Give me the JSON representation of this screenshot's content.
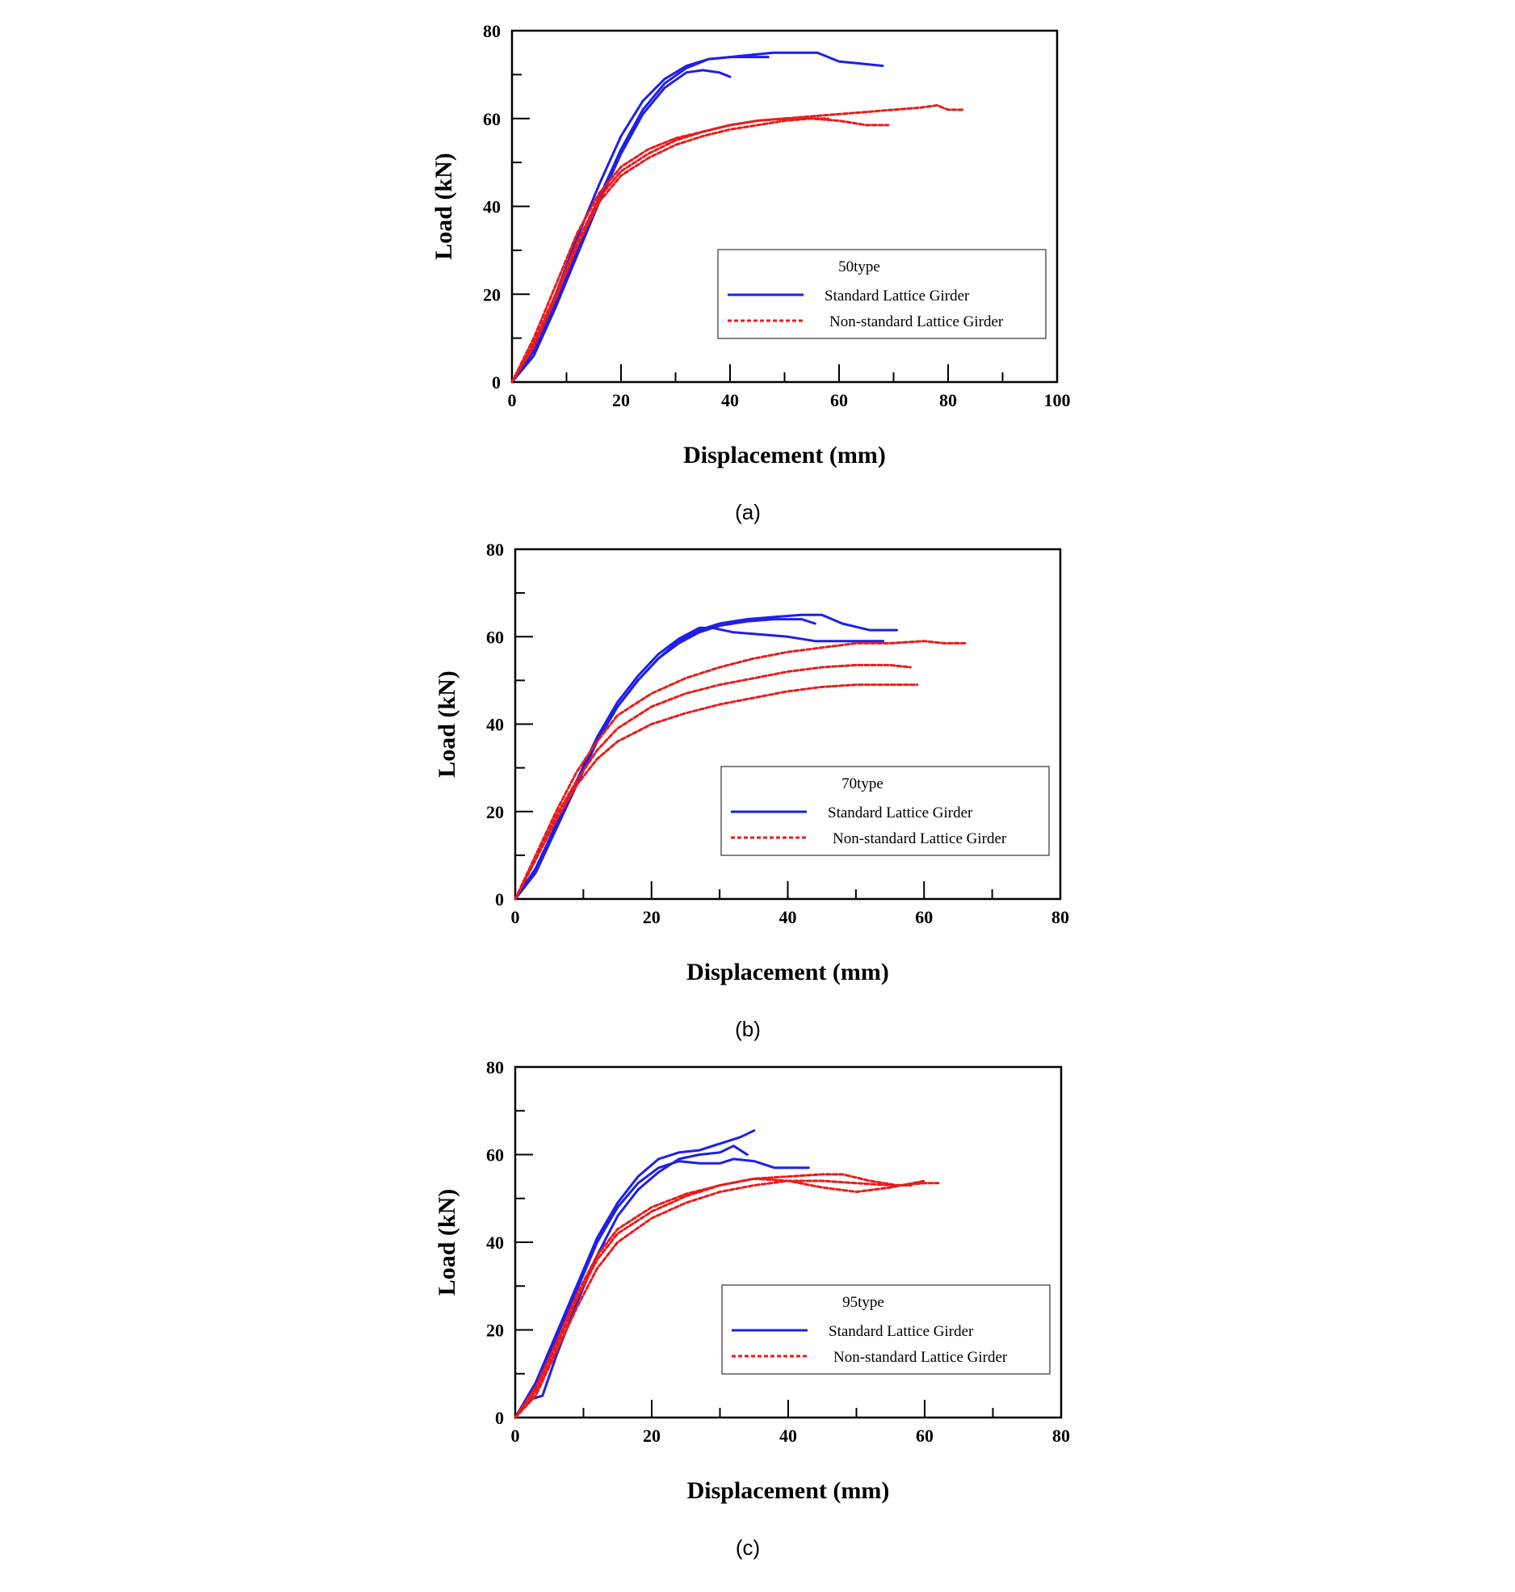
{
  "chart_data": [
    {
      "type": "line",
      "caption": "(a)",
      "xlabel": "Displacement (mm)",
      "ylabel": "Load (kN)",
      "xlim": [
        0,
        100
      ],
      "ylim": [
        0,
        80
      ],
      "xticks": [
        0,
        20,
        40,
        60,
        80,
        100
      ],
      "yticks": [
        0,
        20,
        40,
        60,
        80
      ],
      "grid": false,
      "legend_position": "lower-right",
      "legend_title": "50type",
      "legend_entries": [
        {
          "label": "Standard Lattice Girder",
          "color": "#1f1fe6",
          "dash": "solid"
        },
        {
          "label": "Non-standard Lattice Girder",
          "color": "#e81c1c",
          "dash": "dashed"
        }
      ],
      "series": [
        {
          "group": 0,
          "x": [
            0,
            4,
            8,
            12,
            16,
            20,
            24,
            28,
            32,
            36,
            40,
            44,
            48,
            52,
            56,
            60,
            64,
            68
          ],
          "y": [
            0,
            7,
            18,
            30,
            42,
            53,
            62,
            68,
            71.5,
            73.5,
            74,
            74.5,
            75,
            75,
            75,
            73,
            72.5,
            72
          ]
        },
        {
          "group": 0,
          "x": [
            0,
            4,
            8,
            12,
            16,
            20,
            24,
            28,
            32,
            36,
            40,
            44,
            47
          ],
          "y": [
            0,
            8,
            20,
            33,
            45,
            56,
            64,
            69,
            72,
            73.5,
            74,
            74,
            74
          ]
        },
        {
          "group": 0,
          "x": [
            0,
            4,
            8,
            12,
            16,
            20,
            24,
            28,
            32,
            35,
            38,
            40
          ],
          "y": [
            0,
            6,
            17,
            29,
            41,
            52,
            61,
            67,
            70.5,
            71,
            70.5,
            69.5
          ]
        },
        {
          "group": 1,
          "x": [
            0,
            4,
            8,
            12,
            16,
            20,
            25,
            30,
            35,
            40,
            45,
            50,
            55,
            60,
            65,
            70,
            75,
            78,
            80,
            83
          ],
          "y": [
            0,
            9,
            20,
            32,
            42,
            48,
            52,
            55,
            57,
            58.5,
            59.5,
            60,
            60.5,
            61,
            61.5,
            62,
            62.5,
            63,
            62,
            62
          ]
        },
        {
          "group": 1,
          "x": [
            0,
            4,
            8,
            12,
            16,
            20,
            25,
            30,
            35,
            40,
            45,
            50,
            55,
            60,
            65,
            69
          ],
          "y": [
            0,
            8,
            19,
            31,
            41,
            47,
            51,
            54,
            56,
            57.5,
            58.5,
            59.5,
            60,
            59.5,
            58.5,
            58.5
          ]
        },
        {
          "group": 1,
          "x": [
            0,
            4,
            8,
            12,
            16,
            20,
            25,
            30,
            35,
            40,
            45,
            50,
            55,
            58
          ],
          "y": [
            0,
            10,
            22,
            34,
            43,
            49,
            53,
            55.5,
            57,
            58.5,
            59.5,
            60,
            60,
            60
          ]
        }
      ]
    },
    {
      "type": "line",
      "caption": "(b)",
      "xlabel": "Displacement (mm)",
      "ylabel": "Load (kN)",
      "xlim": [
        0,
        80
      ],
      "ylim": [
        0,
        80
      ],
      "xticks": [
        0,
        20,
        40,
        60,
        80
      ],
      "yticks": [
        0,
        20,
        40,
        60,
        80
      ],
      "grid": false,
      "legend_position": "lower-right",
      "legend_title": "70type",
      "legend_entries": [
        {
          "label": "Standard Lattice Girder",
          "color": "#1f1fe6",
          "dash": "solid"
        },
        {
          "label": "Non-standard Lattice Girder",
          "color": "#e81c1c",
          "dash": "dashed"
        }
      ],
      "series": [
        {
          "group": 0,
          "x": [
            0,
            3,
            6,
            9,
            12,
            15,
            18,
            21,
            24,
            27,
            30,
            34,
            38,
            42,
            45,
            48,
            52,
            56
          ],
          "y": [
            0,
            6,
            16,
            26,
            36,
            44,
            50,
            55,
            59,
            61.5,
            63,
            64,
            64.5,
            65,
            65,
            63,
            61.5,
            61.5
          ]
        },
        {
          "group": 0,
          "x": [
            0,
            3,
            6,
            9,
            12,
            15,
            18,
            21,
            24,
            27,
            29,
            32,
            36,
            40,
            44,
            48,
            52,
            54
          ],
          "y": [
            0,
            7,
            17,
            27,
            37,
            45,
            51,
            56,
            59.5,
            62,
            62,
            61,
            60.5,
            60,
            59,
            59,
            59,
            59
          ]
        },
        {
          "group": 0,
          "x": [
            0,
            3,
            6,
            9,
            12,
            15,
            18,
            21,
            24,
            27,
            30,
            34,
            38,
            42,
            44
          ],
          "y": [
            0,
            6,
            16,
            26,
            36,
            44,
            50,
            55,
            58.5,
            61,
            62.5,
            63.5,
            64,
            64,
            63
          ]
        },
        {
          "group": 1,
          "x": [
            0,
            3,
            6,
            9,
            12,
            15,
            20,
            25,
            30,
            35,
            40,
            45,
            50,
            55,
            60,
            63,
            66
          ],
          "y": [
            0,
            10,
            20,
            29,
            36,
            42,
            47,
            50.5,
            53,
            55,
            56.5,
            57.5,
            58.5,
            58.5,
            59,
            58.5,
            58.5
          ]
        },
        {
          "group": 1,
          "x": [
            0,
            3,
            6,
            9,
            12,
            15,
            20,
            25,
            30,
            35,
            40,
            45,
            50,
            55,
            58
          ],
          "y": [
            0,
            9,
            19,
            27,
            34,
            39,
            44,
            47,
            49,
            50.5,
            52,
            53,
            53.5,
            53.5,
            53
          ]
        },
        {
          "group": 1,
          "x": [
            0,
            3,
            6,
            9,
            12,
            15,
            20,
            25,
            30,
            35,
            40,
            45,
            50,
            55,
            59
          ],
          "y": [
            0,
            9,
            18,
            26,
            32,
            36,
            40,
            42.5,
            44.5,
            46,
            47.5,
            48.5,
            49,
            49,
            49
          ]
        }
      ]
    },
    {
      "type": "line",
      "caption": "(c)",
      "xlabel": "Displacement (mm)",
      "ylabel": "Load (kN)",
      "xlim": [
        0,
        80
      ],
      "ylim": [
        0,
        80
      ],
      "xticks": [
        0,
        20,
        40,
        60,
        80
      ],
      "yticks": [
        0,
        20,
        40,
        60,
        80
      ],
      "grid": false,
      "legend_position": "lower-right",
      "legend_title": "95type",
      "legend_entries": [
        {
          "label": "Standard Lattice Girder",
          "color": "#1f1fe6",
          "dash": "solid"
        },
        {
          "label": "Non-standard Lattice Girder",
          "color": "#e81c1c",
          "dash": "dashed"
        }
      ],
      "series": [
        {
          "group": 0,
          "x": [
            0,
            3,
            6,
            9,
            12,
            15,
            18,
            21,
            24,
            27,
            30,
            33,
            35
          ],
          "y": [
            0,
            8,
            19,
            30,
            41,
            49,
            55,
            59,
            60.5,
            61,
            62.5,
            64,
            65.5
          ]
        },
        {
          "group": 0,
          "x": [
            0,
            3,
            6,
            9,
            12,
            15,
            18,
            21,
            24,
            27,
            30,
            32,
            35,
            38,
            40,
            43
          ],
          "y": [
            0,
            7,
            18,
            29,
            40,
            48,
            53.5,
            57,
            58.5,
            58,
            58,
            59,
            58.5,
            57,
            57,
            57
          ]
        },
        {
          "group": 0,
          "x": [
            0,
            2,
            4,
            6,
            9,
            12,
            15,
            18,
            21,
            24,
            27,
            30,
            32,
            34
          ],
          "y": [
            0,
            4,
            5,
            14,
            26,
            37,
            46,
            52,
            56,
            59,
            60,
            60.5,
            62,
            60
          ]
        },
        {
          "group": 1,
          "x": [
            0,
            3,
            6,
            9,
            12,
            15,
            20,
            25,
            30,
            35,
            40,
            45,
            48,
            52,
            56,
            60,
            62
          ],
          "y": [
            0,
            6,
            16,
            27,
            36,
            42,
            47,
            50.5,
            53,
            54.5,
            55,
            55.5,
            55.5,
            54,
            53,
            53.5,
            53.5
          ]
        },
        {
          "group": 1,
          "x": [
            0,
            3,
            6,
            9,
            12,
            15,
            20,
            25,
            30,
            35,
            40,
            45,
            50,
            55,
            60
          ],
          "y": [
            0,
            7,
            17,
            28,
            37,
            43,
            48,
            51,
            53,
            54.5,
            54,
            52.5,
            51.5,
            52.5,
            54
          ]
        },
        {
          "group": 1,
          "x": [
            0,
            3,
            6,
            9,
            12,
            15,
            20,
            25,
            30,
            35,
            40,
            45,
            50,
            55,
            58
          ],
          "y": [
            0,
            5,
            15,
            25,
            34,
            40,
            45.5,
            49,
            51.5,
            53,
            54,
            54,
            53.5,
            53,
            53
          ]
        }
      ]
    }
  ]
}
